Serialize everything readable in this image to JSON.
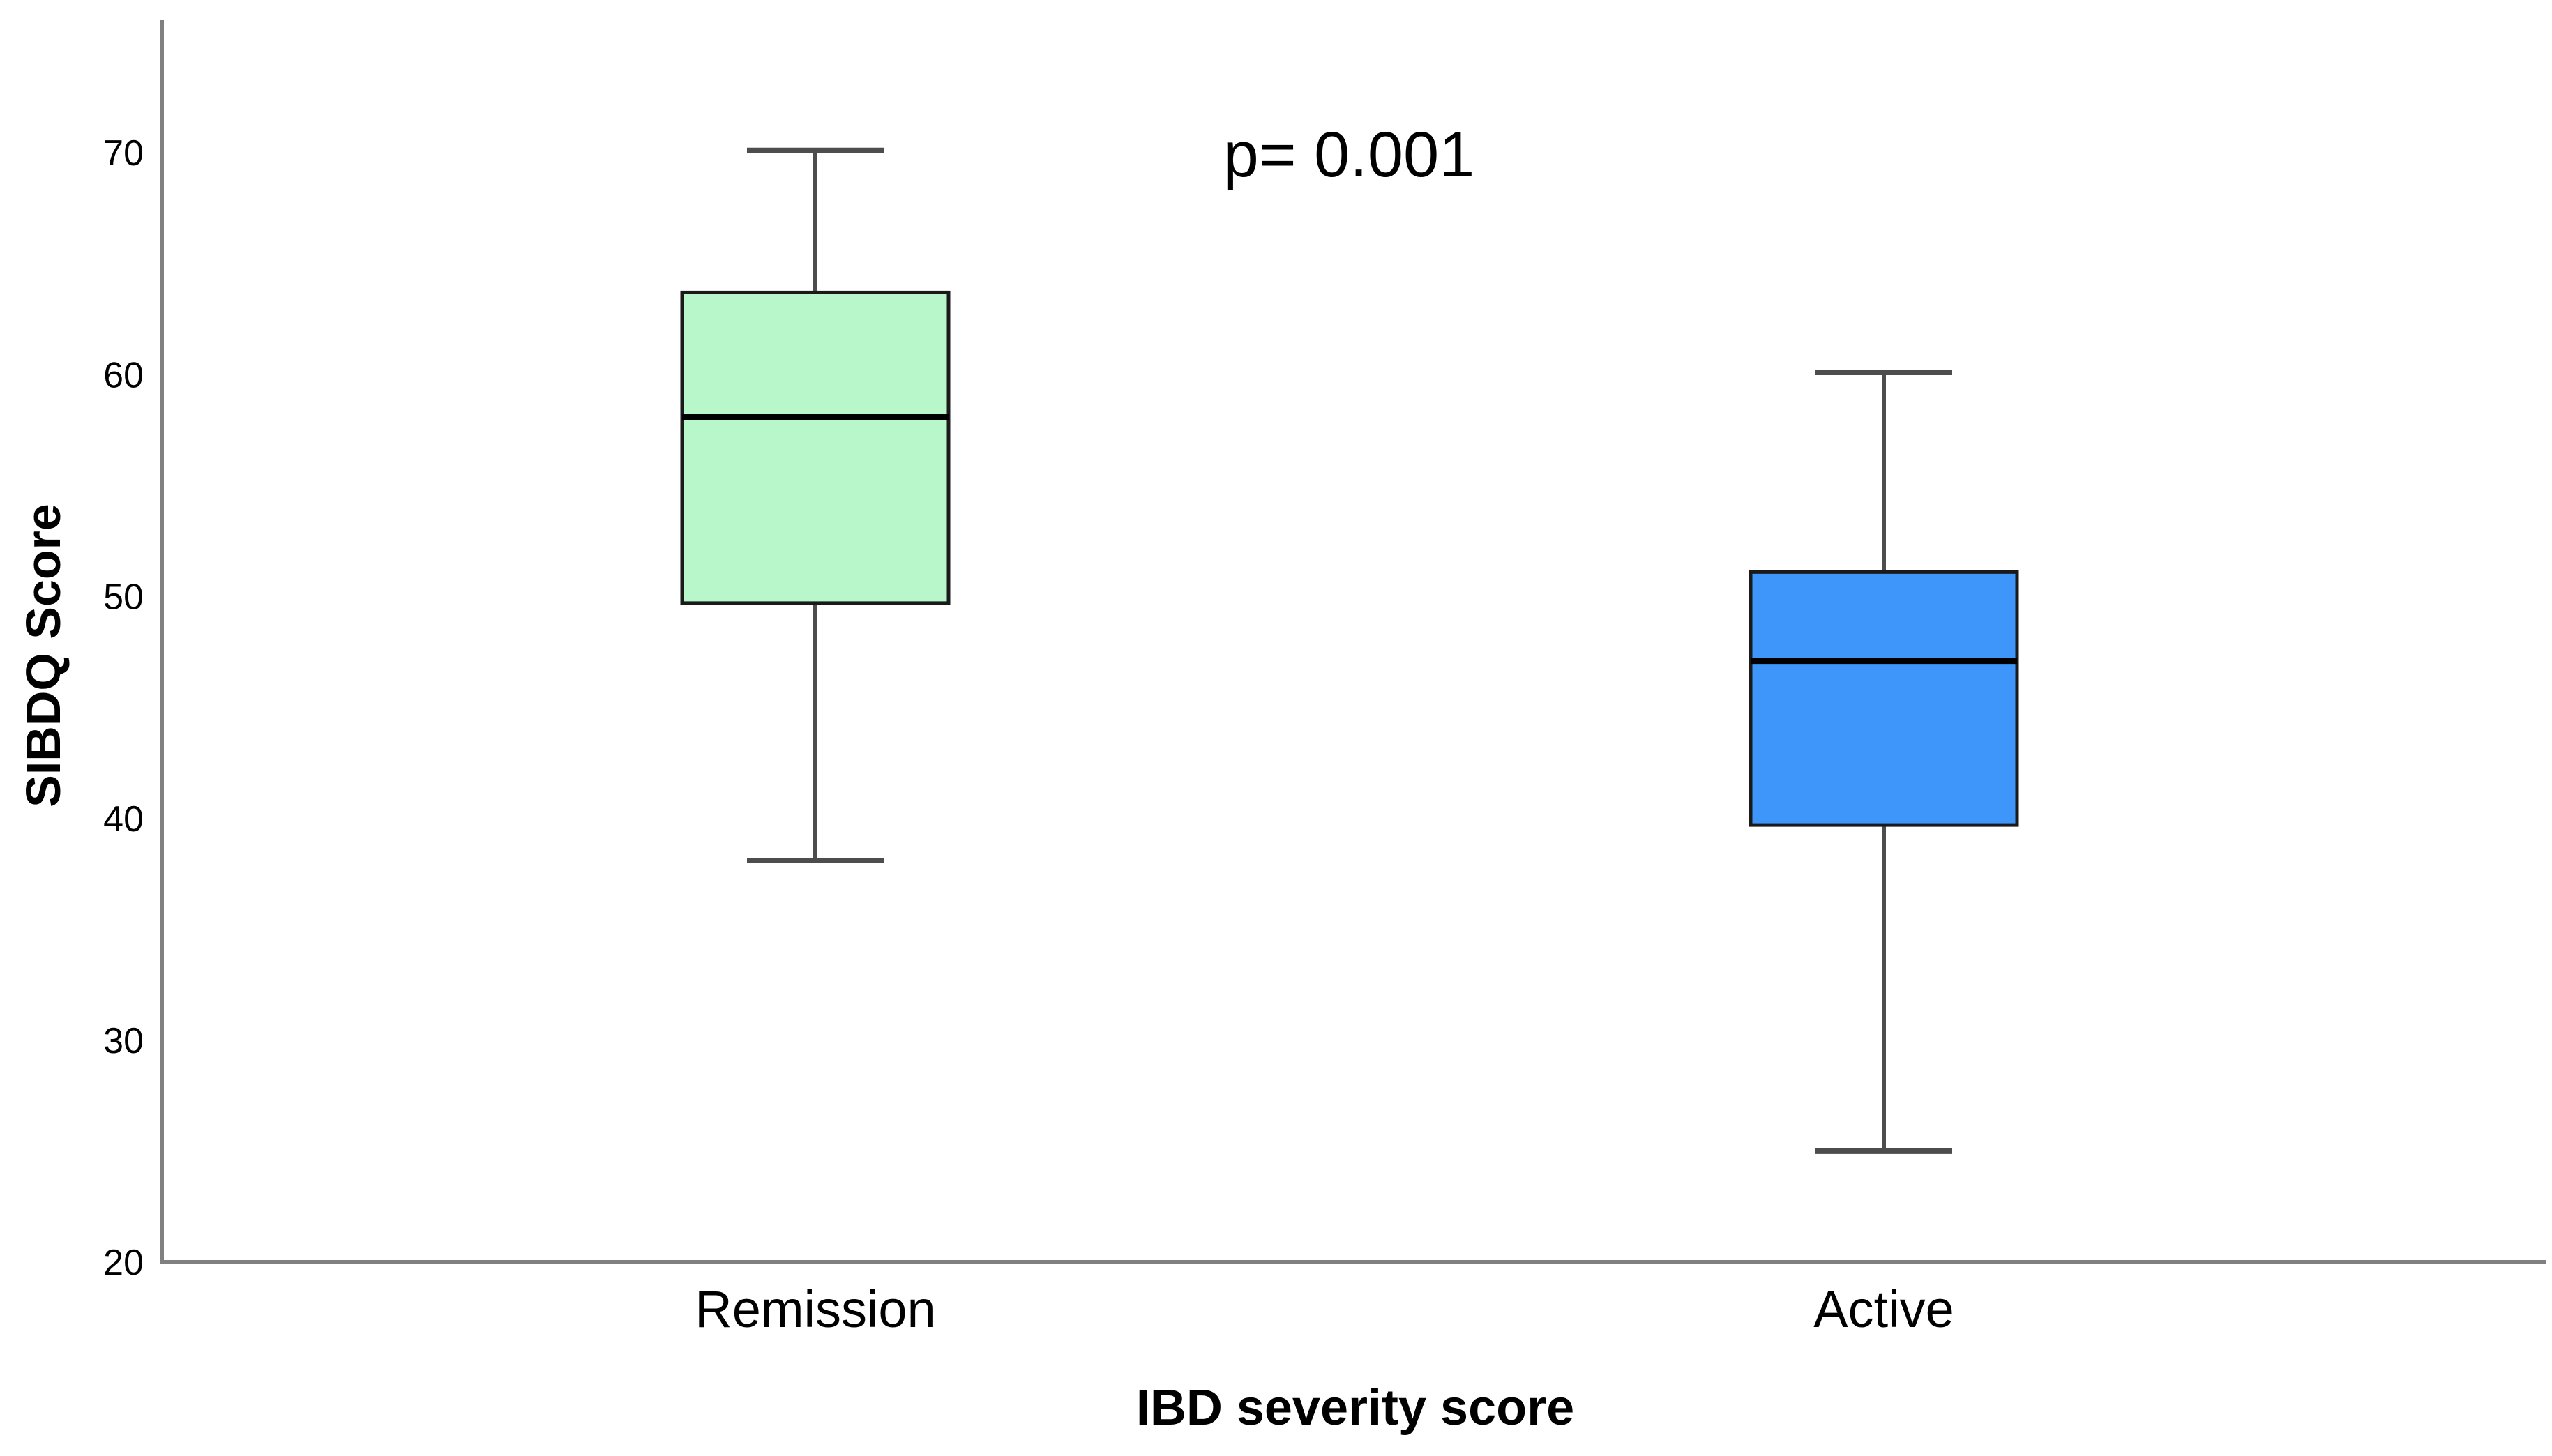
{
  "page": {
    "background_color": "#FFFFFF"
  },
  "chart_data": {
    "type": "boxplot",
    "title": "",
    "xlabel": "IBD severity score",
    "ylabel": "SIBDQ Score",
    "annotation": "p= 0.001",
    "categories": [
      "Remission",
      "Active"
    ],
    "yticks": [
      20,
      30,
      40,
      50,
      60,
      70
    ],
    "ylim": [
      20,
      76
    ],
    "grid": false,
    "legend_position": "none",
    "series": [
      {
        "name": "Remission",
        "min": 38.1,
        "q1": 49.7,
        "median": 58.1,
        "q3": 63.7,
        "max": 70.1,
        "fill_color": "#B8F7CA"
      },
      {
        "name": "Active",
        "min": 25.0,
        "q1": 39.7,
        "median": 47.1,
        "q3": 51.1,
        "max": 60.1,
        "fill_color": "#3F96FA"
      }
    ],
    "colors": {
      "box_border": "#1A1A1A",
      "median_line": "#000000",
      "whisker": "#4D4D4D",
      "axis_line": "#808080",
      "text": "#000000"
    }
  }
}
